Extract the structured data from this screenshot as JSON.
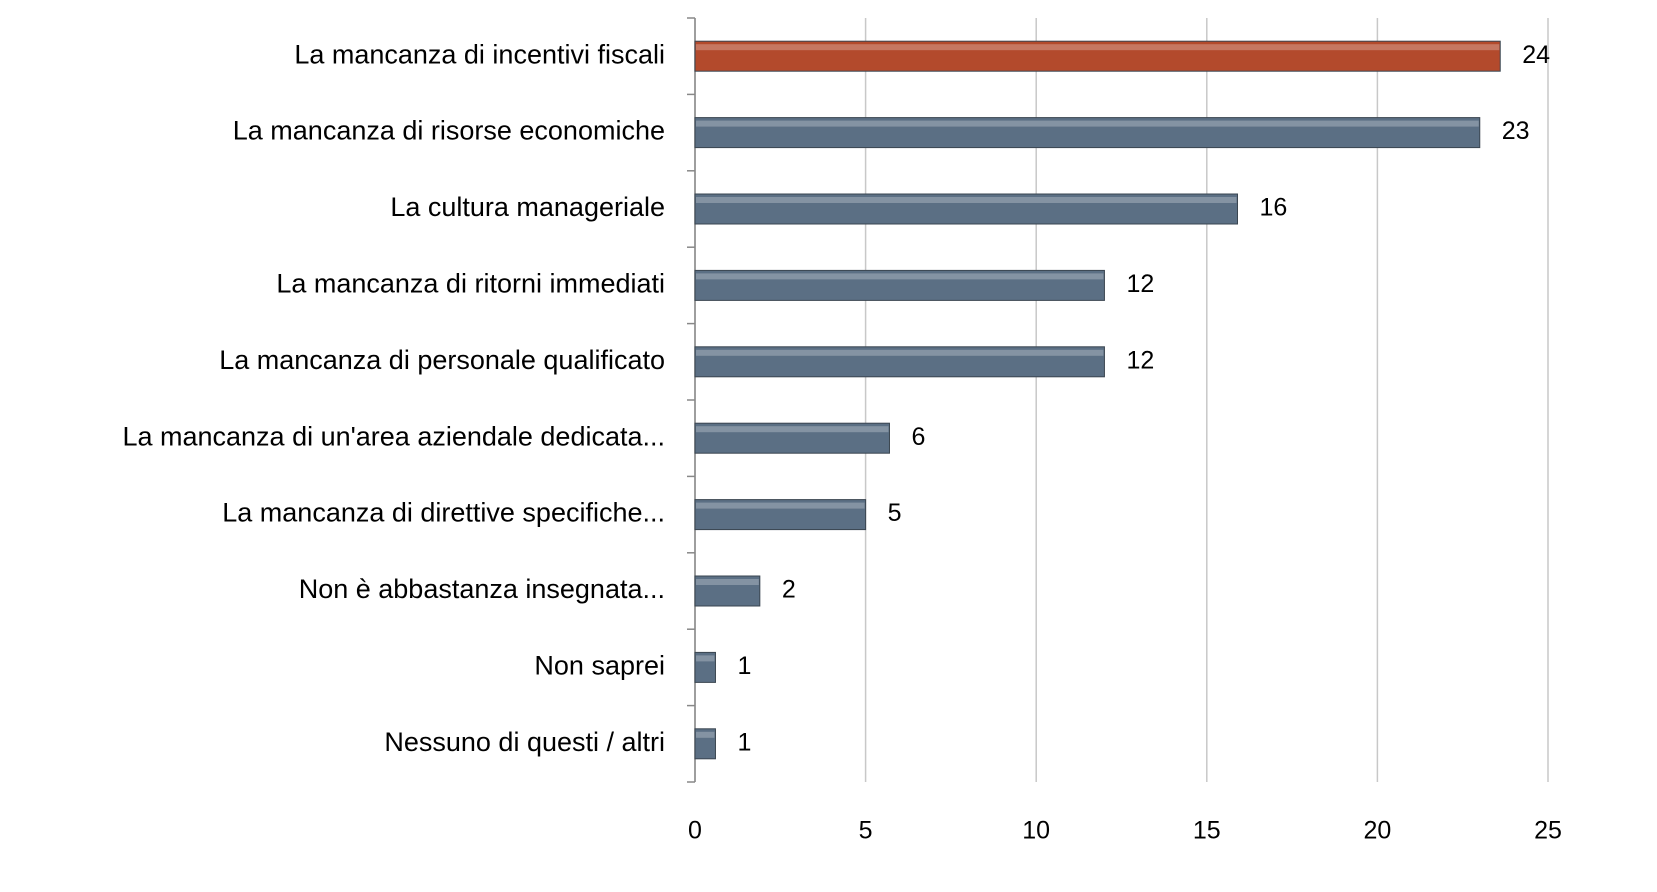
{
  "chart_data": {
    "type": "bar",
    "orientation": "horizontal",
    "categories": [
      "La mancanza di incentivi fiscali",
      "La mancanza di risorse economiche",
      "La cultura manageriale",
      "La mancanza di ritorni immediati",
      "La mancanza di personale qualificato",
      "La mancanza di un'area aziendale dedicata...",
      "La mancanza di direttive specifiche...",
      "Non è abbastanza insegnata...",
      "Non saprei",
      "Nessuno di questi / altri"
    ],
    "values": [
      23.6,
      23.0,
      15.9,
      12.0,
      12.0,
      5.7,
      5.0,
      1.9,
      0.6,
      0.6
    ],
    "value_labels": [
      "24",
      "23",
      "16",
      "12",
      "12",
      "6",
      "5",
      "2",
      "1",
      "1"
    ],
    "colors": [
      "#b34a2c",
      "#5b6f84",
      "#5b6f84",
      "#5b6f84",
      "#5b6f84",
      "#5b6f84",
      "#5b6f84",
      "#5b6f84",
      "#5b6f84",
      "#5b6f84"
    ],
    "xlim": [
      0,
      25
    ],
    "xticks": [
      0,
      5,
      10,
      15,
      20,
      25
    ],
    "grid": true
  }
}
